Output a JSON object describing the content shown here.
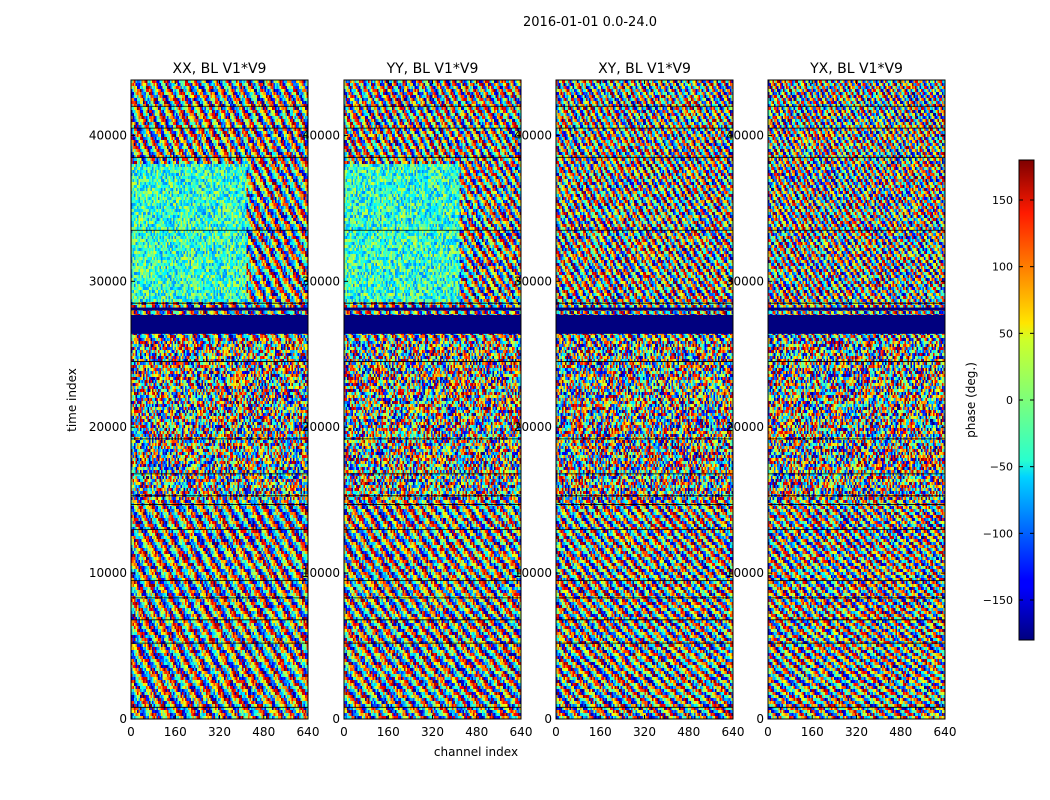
{
  "chart_data": {
    "type": "heatmap",
    "suptitle": "2016-01-01 0.0-24.0",
    "xlabel": "channel index",
    "ylabel": "time index",
    "xlim": [
      0,
      640
    ],
    "ylim": [
      0,
      43800
    ],
    "xticks": [
      0,
      160,
      320,
      480,
      640
    ],
    "yticks": [
      0,
      10000,
      20000,
      30000,
      40000
    ],
    "panels": [
      {
        "title": "XX, BL V1*V9"
      },
      {
        "title": "YY, BL V1*V9"
      },
      {
        "title": "XY, BL V1*V9"
      },
      {
        "title": "YX, BL V1*V9"
      }
    ],
    "colorbar": {
      "label": "phase (deg.)",
      "range": [
        -180,
        180
      ],
      "ticks": [
        -150,
        -100,
        -50,
        0,
        50,
        100,
        150
      ],
      "colormap": "jet"
    },
    "masked_time_rows": [
      [
        26400,
        27700
      ],
      [
        28000,
        28200
      ]
    ],
    "horizontal_gap_lines": [
      800,
      5200,
      6800,
      8300,
      9500,
      13000,
      14700,
      15300,
      16800,
      19200,
      24500,
      28500,
      33500,
      38500,
      40500,
      42000
    ]
  }
}
